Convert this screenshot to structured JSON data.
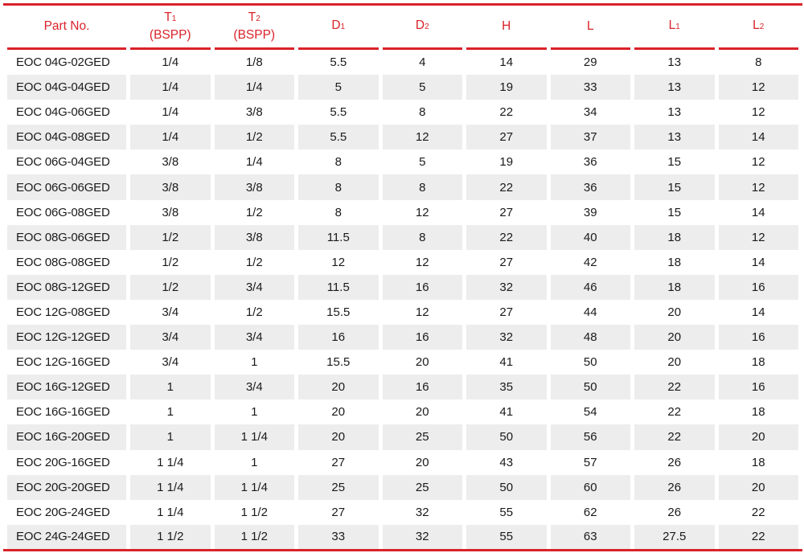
{
  "columns": [
    {
      "label": "Part No.",
      "sub": "",
      "line2": ""
    },
    {
      "label": "T",
      "sub": "1",
      "line2": "(BSPP)"
    },
    {
      "label": "T",
      "sub": "2",
      "line2": "(BSPP)"
    },
    {
      "label": "D",
      "sub": "1",
      "line2": ""
    },
    {
      "label": "D",
      "sub": "2",
      "line2": ""
    },
    {
      "label": "H",
      "sub": "",
      "line2": ""
    },
    {
      "label": "L",
      "sub": "",
      "line2": ""
    },
    {
      "label": "L",
      "sub": "1",
      "line2": ""
    },
    {
      "label": "L",
      "sub": "2",
      "line2": ""
    }
  ],
  "rows": [
    [
      "EOC 04G-02GED",
      "1/4",
      "1/8",
      "5.5",
      "4",
      "14",
      "29",
      "13",
      "8"
    ],
    [
      "EOC 04G-04GED",
      "1/4",
      "1/4",
      "5",
      "5",
      "19",
      "33",
      "13",
      "12"
    ],
    [
      "EOC 04G-06GED",
      "1/4",
      "3/8",
      "5.5",
      "8",
      "22",
      "34",
      "13",
      "12"
    ],
    [
      "EOC 04G-08GED",
      "1/4",
      "1/2",
      "5.5",
      "12",
      "27",
      "37",
      "13",
      "14"
    ],
    [
      "EOC 06G-04GED",
      "3/8",
      "1/4",
      "8",
      "5",
      "19",
      "36",
      "15",
      "12"
    ],
    [
      "EOC 06G-06GED",
      "3/8",
      "3/8",
      "8",
      "8",
      "22",
      "36",
      "15",
      "12"
    ],
    [
      "EOC 06G-08GED",
      "3/8",
      "1/2",
      "8",
      "12",
      "27",
      "39",
      "15",
      "14"
    ],
    [
      "EOC 08G-06GED",
      "1/2",
      "3/8",
      "11.5",
      "8",
      "22",
      "40",
      "18",
      "12"
    ],
    [
      "EOC 08G-08GED",
      "1/2",
      "1/2",
      "12",
      "12",
      "27",
      "42",
      "18",
      "14"
    ],
    [
      "EOC 08G-12GED",
      "1/2",
      "3/4",
      "11.5",
      "16",
      "32",
      "46",
      "18",
      "16"
    ],
    [
      "EOC 12G-08GED",
      "3/4",
      "1/2",
      "15.5",
      "12",
      "27",
      "44",
      "20",
      "14"
    ],
    [
      "EOC 12G-12GED",
      "3/4",
      "3/4",
      "16",
      "16",
      "32",
      "48",
      "20",
      "16"
    ],
    [
      "EOC 12G-16GED",
      "3/4",
      "1",
      "15.5",
      "20",
      "41",
      "50",
      "20",
      "18"
    ],
    [
      "EOC 16G-12GED",
      "1",
      "3/4",
      "20",
      "16",
      "35",
      "50",
      "22",
      "16"
    ],
    [
      "EOC 16G-16GED",
      "1",
      "1",
      "20",
      "20",
      "41",
      "54",
      "22",
      "18"
    ],
    [
      "EOC 16G-20GED",
      "1",
      "1 1/4",
      "20",
      "25",
      "50",
      "56",
      "22",
      "20"
    ],
    [
      "EOC 20G-16GED",
      "1 1/4",
      "1",
      "27",
      "20",
      "43",
      "57",
      "26",
      "18"
    ],
    [
      "EOC 20G-20GED",
      "1 1/4",
      "1 1/4",
      "25",
      "25",
      "50",
      "60",
      "26",
      "20"
    ],
    [
      "EOC 20G-24GED",
      "1 1/4",
      "1 1/2",
      "27",
      "32",
      "55",
      "62",
      "26",
      "22"
    ],
    [
      "EOC 24G-24GED",
      "1 1/2",
      "1 1/2",
      "33",
      "32",
      "55",
      "63",
      "27.5",
      "22"
    ]
  ],
  "colors": {
    "accent": "#d9222a",
    "stripe": "#ededed",
    "text": "#1a1a1a"
  }
}
